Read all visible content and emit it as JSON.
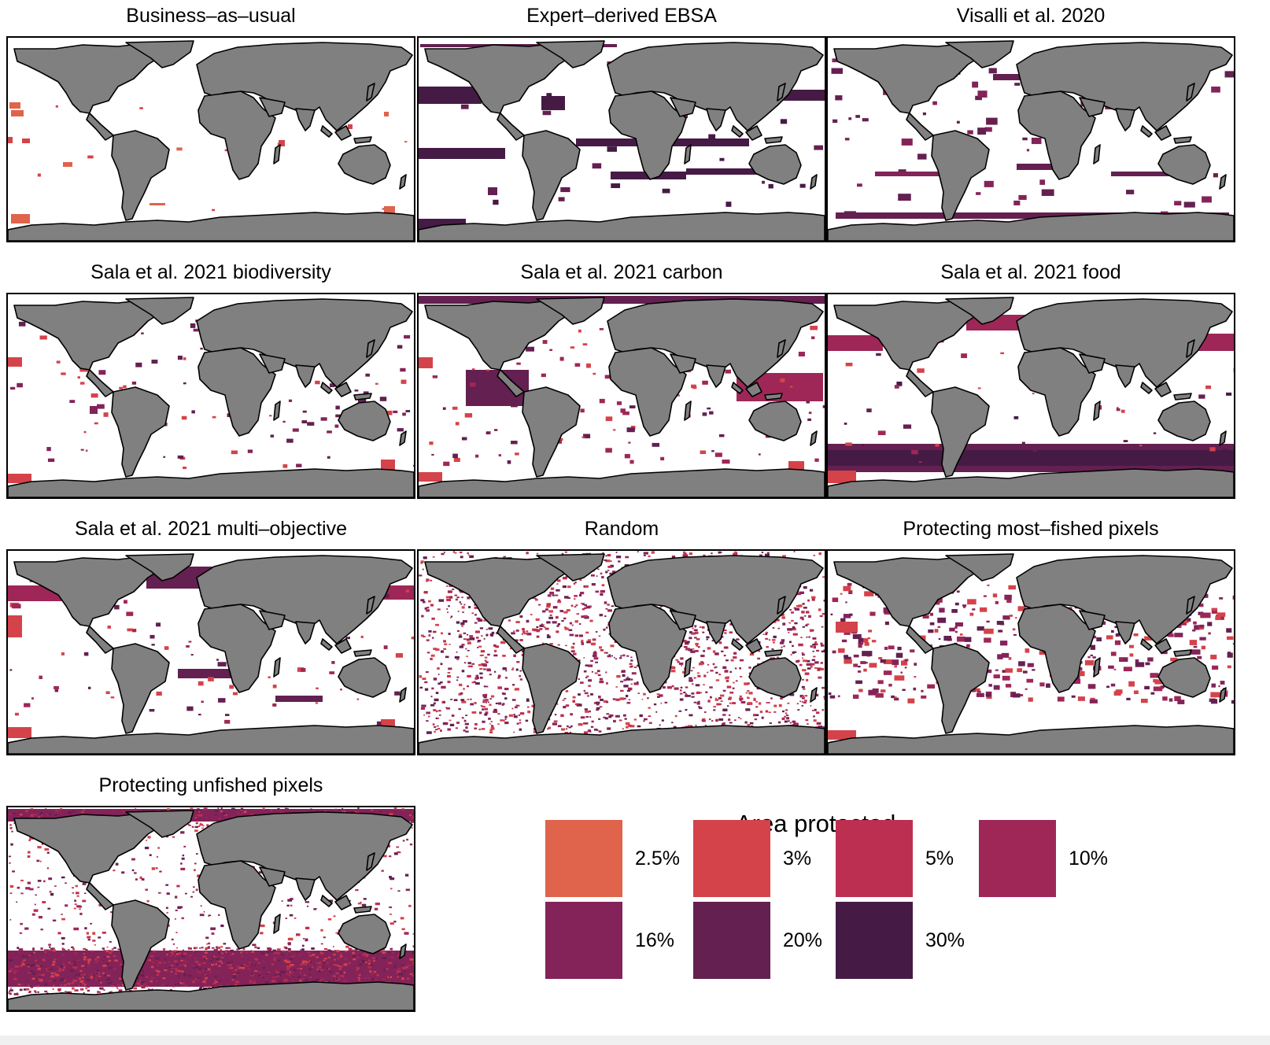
{
  "colors": {
    "land": "#808080",
    "coast": "#000000",
    "ocean": "#ffffff",
    "frame": "#000000"
  },
  "panels": [
    {
      "title": "Business–as–usual",
      "pattern": "bau",
      "levels": [
        "2.5%",
        "3%"
      ]
    },
    {
      "title": "Expert–derived EBSA",
      "pattern": "ebsa",
      "levels": [
        "20%",
        "30%"
      ]
    },
    {
      "title": "Visalli et al. 2020",
      "pattern": "visalli",
      "levels": [
        "16%",
        "20%"
      ]
    },
    {
      "title": "Sala et al. 2021 biodiversity",
      "pattern": "biodiversity",
      "levels": [
        "3%",
        "16%",
        "20%"
      ]
    },
    {
      "title": "Sala et al. 2021 carbon",
      "pattern": "carbon",
      "levels": [
        "3%",
        "10%",
        "20%"
      ]
    },
    {
      "title": "Sala et al. 2021 food",
      "pattern": "food",
      "levels": [
        "3%",
        "10%",
        "20%",
        "30%"
      ]
    },
    {
      "title": "Sala et al. 2021 multi–objective",
      "pattern": "multi",
      "levels": [
        "3%",
        "10%",
        "20%"
      ]
    },
    {
      "title": "Random",
      "pattern": "random",
      "levels": [
        "3%",
        "5%",
        "10%",
        "16%",
        "20%"
      ]
    },
    {
      "title": "Protecting most–fished pixels",
      "pattern": "mostfished",
      "levels": [
        "3%",
        "10%",
        "16%",
        "20%"
      ]
    },
    {
      "title": "Protecting unfished pixels",
      "pattern": "unfished",
      "levels": [
        "3%",
        "5%",
        "10%",
        "16%",
        "20%"
      ]
    }
  ],
  "legend": {
    "title": "Area protected",
    "items": [
      {
        "label": "2.5%",
        "color": "#e0634b"
      },
      {
        "label": "3%",
        "color": "#d4434a"
      },
      {
        "label": "5%",
        "color": "#bd2f50"
      },
      {
        "label": "10%",
        "color": "#9e2757"
      },
      {
        "label": "16%",
        "color": "#832359"
      },
      {
        "label": "20%",
        "color": "#632050"
      },
      {
        "label": "30%",
        "color": "#451b45"
      }
    ]
  }
}
